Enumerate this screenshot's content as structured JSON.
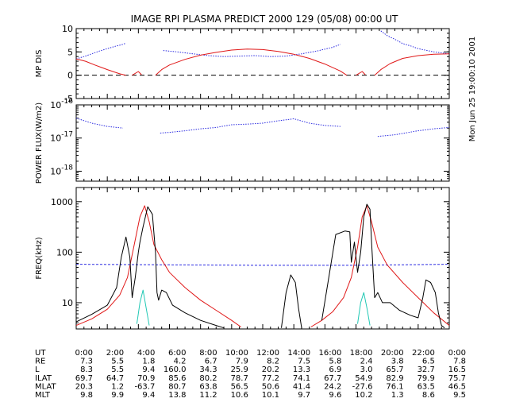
{
  "title": "IMAGE  RPI PLASMA PREDICT 2000 129 (05/08) 00:00 UT",
  "side_label": "Mon Jun 25 19:00:10 2001",
  "colors": {
    "blue": "#2a2ae0",
    "red": "#e01818",
    "black": "#000000",
    "cyan": "#20c8b4"
  },
  "chart_data": [
    {
      "type": "line",
      "ylabel": "MP DIS",
      "xlim": [
        0,
        24
      ],
      "ylim": [
        -5,
        10
      ],
      "yticks": [
        {
          "v": -5,
          "label": "-5"
        },
        {
          "v": 0,
          "label": "0"
        },
        {
          "v": 5,
          "label": "5"
        },
        {
          "v": 10,
          "label": "10"
        }
      ],
      "reference_line": 0,
      "series": [
        {
          "color": "blue",
          "segments": [
            [
              [
                0,
                3.5
              ],
              [
                0.5,
                4
              ],
              [
                1,
                4.6
              ],
              [
                1.5,
                5.2
              ],
              [
                2,
                5.7
              ],
              [
                2.5,
                6.2
              ],
              [
                3,
                6.6
              ],
              [
                3.2,
                6.9
              ]
            ],
            [
              [
                5.6,
                5.3
              ],
              [
                6.5,
                5.0
              ],
              [
                7.5,
                4.6
              ],
              [
                8.5,
                4.2
              ],
              [
                9.5,
                4.0
              ],
              [
                10.5,
                4.1
              ],
              [
                11.5,
                4.2
              ],
              [
                12.5,
                4.0
              ],
              [
                13.5,
                4.1
              ],
              [
                14.5,
                4.6
              ],
              [
                15.5,
                5.2
              ],
              [
                16.5,
                6.0
              ],
              [
                17,
                6.6
              ]
            ],
            [
              [
                19.6,
                9.5
              ],
              [
                20,
                8.5
              ],
              [
                20.5,
                7.7
              ],
              [
                21,
                6.8
              ],
              [
                21.5,
                6.3
              ],
              [
                22,
                5.7
              ],
              [
                23,
                5.0
              ],
              [
                24,
                4.6
              ]
            ]
          ]
        },
        {
          "color": "red",
          "segments": [
            [
              [
                0,
                3.5
              ],
              [
                0.6,
                3.0
              ],
              [
                1.2,
                2.2
              ],
              [
                2,
                1.2
              ],
              [
                2.8,
                0.3
              ],
              [
                3.2,
                0.0
              ]
            ],
            [
              [
                3.6,
                0.0
              ],
              [
                4.0,
                0.8
              ],
              [
                4.2,
                0.1
              ]
            ],
            [
              [
                5.1,
                0
              ],
              [
                5.5,
                1.2
              ],
              [
                6,
                2.2
              ],
              [
                7,
                3.4
              ],
              [
                8,
                4.3
              ],
              [
                9,
                4.9
              ],
              [
                10,
                5.4
              ],
              [
                11,
                5.6
              ],
              [
                12,
                5.5
              ],
              [
                13,
                5.1
              ],
              [
                14,
                4.5
              ],
              [
                15,
                3.6
              ],
              [
                16,
                2.4
              ],
              [
                17,
                0.9
              ],
              [
                17.4,
                0
              ]
            ],
            [
              [
                18,
                0.0
              ],
              [
                18.4,
                0.8
              ],
              [
                18.6,
                0.1
              ]
            ],
            [
              [
                19.2,
                0
              ],
              [
                19.6,
                1.2
              ],
              [
                20.2,
                2.5
              ],
              [
                21,
                3.6
              ],
              [
                22,
                4.2
              ],
              [
                23,
                4.5
              ],
              [
                24,
                4.6
              ]
            ]
          ]
        }
      ]
    },
    {
      "type": "line",
      "ylabel": "POWER FLUX(W/m2)",
      "log": true,
      "xlim": [
        0,
        24
      ],
      "ylim": [
        -18.3,
        -16
      ],
      "yticks": [
        {
          "v": -16,
          "label": "10^-16"
        },
        {
          "v": -17,
          "label": "10^-17"
        },
        {
          "v": -18,
          "label": "10^-18"
        }
      ],
      "series": [
        {
          "color": "blue",
          "segments": [
            [
              [
                0,
                -16.4
              ],
              [
                1,
                -16.55
              ],
              [
                2,
                -16.65
              ],
              [
                3,
                -16.7
              ]
            ],
            [
              [
                5.4,
                -16.85
              ],
              [
                6,
                -16.83
              ],
              [
                7,
                -16.78
              ],
              [
                8,
                -16.72
              ],
              [
                9,
                -16.68
              ],
              [
                10,
                -16.6
              ],
              [
                11,
                -16.58
              ],
              [
                12,
                -16.55
              ],
              [
                13,
                -16.48
              ],
              [
                14,
                -16.42
              ],
              [
                15,
                -16.55
              ],
              [
                16,
                -16.62
              ],
              [
                17,
                -16.65
              ]
            ],
            [
              [
                19.4,
                -16.95
              ],
              [
                20.5,
                -16.9
              ],
              [
                22,
                -16.78
              ],
              [
                23,
                -16.72
              ],
              [
                24,
                -16.68
              ]
            ]
          ]
        }
      ]
    },
    {
      "type": "line",
      "ylabel": "FREQ(kHz)",
      "log": true,
      "xlim": [
        0,
        24
      ],
      "ylim": [
        0.48,
        3.28
      ],
      "yticks": [
        {
          "v": 3,
          "label": "1000"
        },
        {
          "v": 2,
          "label": "100"
        },
        {
          "v": 1,
          "label": "10"
        }
      ],
      "series": [
        {
          "color": "blue",
          "style": "dashed",
          "segments": [
            [
              [
                0,
                1.76
              ],
              [
                6,
                1.75
              ],
              [
                12,
                1.74
              ],
              [
                18,
                1.74
              ],
              [
                24,
                1.76
              ]
            ]
          ]
        },
        {
          "color": "red",
          "segments": [
            [
              [
                0,
                0.55
              ],
              [
                1,
                0.68
              ],
              [
                2,
                0.87
              ],
              [
                2.8,
                1.15
              ],
              [
                3.3,
                1.5
              ],
              [
                3.7,
                2.1
              ],
              [
                4.1,
                2.7
              ],
              [
                4.4,
                2.92
              ],
              [
                4.7,
                2.6
              ],
              [
                5,
                2.15
              ],
              [
                5.5,
                1.85
              ],
              [
                6,
                1.6
              ],
              [
                7,
                1.3
              ],
              [
                8,
                1.05
              ],
              [
                9,
                0.85
              ],
              [
                10,
                0.65
              ],
              [
                10.6,
                0.52
              ]
            ],
            [
              [
                15.1,
                0.52
              ],
              [
                15.8,
                0.65
              ],
              [
                16.5,
                0.82
              ],
              [
                17.2,
                1.1
              ],
              [
                17.7,
                1.5
              ],
              [
                18.1,
                2.1
              ],
              [
                18.4,
                2.7
              ],
              [
                18.7,
                2.92
              ],
              [
                19,
                2.6
              ],
              [
                19.4,
                2.1
              ],
              [
                20,
                1.75
              ],
              [
                21,
                1.4
              ],
              [
                22,
                1.1
              ],
              [
                23,
                0.8
              ],
              [
                24,
                0.55
              ]
            ]
          ]
        },
        {
          "color": "black",
          "segments": [
            [
              [
                0,
                0.62
              ],
              [
                1,
                0.77
              ],
              [
                2,
                0.95
              ],
              [
                2.6,
                1.3
              ],
              [
                2.9,
                1.9
              ],
              [
                3.2,
                2.3
              ],
              [
                3.45,
                1.9
              ],
              [
                3.6,
                1.1
              ],
              [
                3.8,
                1.5
              ],
              [
                4.0,
                2.0
              ],
              [
                4.1,
                2.2
              ],
              [
                4.3,
                2.5
              ],
              [
                4.6,
                2.9
              ],
              [
                4.9,
                2.75
              ],
              [
                5.1,
                2.0
              ],
              [
                5.2,
                1.2
              ],
              [
                5.3,
                1.05
              ],
              [
                5.5,
                1.25
              ],
              [
                5.8,
                1.2
              ],
              [
                6.2,
                0.95
              ],
              [
                7,
                0.8
              ],
              [
                8,
                0.65
              ],
              [
                9,
                0.55
              ],
              [
                9.5,
                0.5
              ]
            ],
            [
              [
                13.2,
                0.5
              ],
              [
                13.5,
                1.2
              ],
              [
                13.8,
                1.55
              ],
              [
                14.1,
                1.4
              ],
              [
                14.3,
                0.9
              ],
              [
                14.5,
                0.5
              ]
            ],
            [
              [
                15.8,
                0.65
              ],
              [
                16.2,
                1.4
              ],
              [
                16.7,
                2.35
              ],
              [
                17.3,
                2.42
              ],
              [
                17.6,
                2.4
              ],
              [
                17.7,
                1.8
              ],
              [
                17.9,
                2.2
              ],
              [
                18.1,
                1.6
              ],
              [
                18.3,
                2.0
              ],
              [
                18.5,
                2.7
              ],
              [
                18.7,
                2.95
              ],
              [
                18.9,
                2.85
              ],
              [
                19,
                2.2
              ],
              [
                19.2,
                1.1
              ],
              [
                19.4,
                1.2
              ],
              [
                19.7,
                1.0
              ],
              [
                20.2,
                1.0
              ],
              [
                20.8,
                0.85
              ],
              [
                21.5,
                0.75
              ],
              [
                22,
                0.7
              ],
              [
                22.3,
                1.1
              ],
              [
                22.5,
                1.45
              ],
              [
                22.8,
                1.4
              ],
              [
                23.1,
                1.2
              ],
              [
                23.3,
                0.8
              ],
              [
                23.5,
                0.55
              ],
              [
                23.7,
                0.5
              ]
            ]
          ]
        },
        {
          "color": "cyan",
          "segments": [
            [
              [
                3.9,
                0.58
              ],
              [
                4.1,
                1.0
              ],
              [
                4.3,
                1.25
              ],
              [
                4.5,
                0.9
              ],
              [
                4.7,
                0.55
              ]
            ],
            [
              [
                18.1,
                0.58
              ],
              [
                18.3,
                1.0
              ],
              [
                18.5,
                1.2
              ],
              [
                18.7,
                0.9
              ],
              [
                18.9,
                0.55
              ]
            ]
          ]
        }
      ]
    }
  ],
  "ephemeris": {
    "columns": 13,
    "rows": [
      {
        "label": "UT",
        "values": [
          "0:00",
          "2:00",
          "4:00",
          "6:00",
          "8:00",
          "10:00",
          "12:00",
          "14:00",
          "16:00",
          "18:00",
          "20:00",
          "22:00",
          "0:00"
        ]
      },
      {
        "label": "RE",
        "values": [
          "7.3",
          "5.5",
          "1.8",
          "4.2",
          "6.7",
          "7.9",
          "8.2",
          "7.5",
          "5.8",
          "2.4",
          "3.8",
          "6.5",
          "7.8"
        ]
      },
      {
        "label": "L",
        "values": [
          "8.3",
          "5.5",
          "9.4",
          "160.0",
          "34.3",
          "25.9",
          "20.2",
          "13.3",
          "6.9",
          "3.0",
          "65.7",
          "32.7",
          "16.5"
        ]
      },
      {
        "label": "ILAT",
        "values": [
          "69.7",
          "64.7",
          "70.9",
          "85.6",
          "80.2",
          "78.7",
          "77.2",
          "74.1",
          "67.7",
          "54.9",
          "82.9",
          "79.9",
          "75.7"
        ]
      },
      {
        "label": "MLAT",
        "values": [
          "20.3",
          "1.2",
          "-63.7",
          "80.7",
          "63.8",
          "56.5",
          "50.6",
          "41.4",
          "24.2",
          "-27.6",
          "76.1",
          "63.5",
          "46.5"
        ]
      },
      {
        "label": "MLT",
        "values": [
          "9.8",
          "9.9",
          "9.4",
          "13.8",
          "11.2",
          "10.6",
          "10.1",
          "9.7",
          "9.6",
          "10.2",
          "1.3",
          "8.6",
          "9.5"
        ]
      }
    ]
  }
}
